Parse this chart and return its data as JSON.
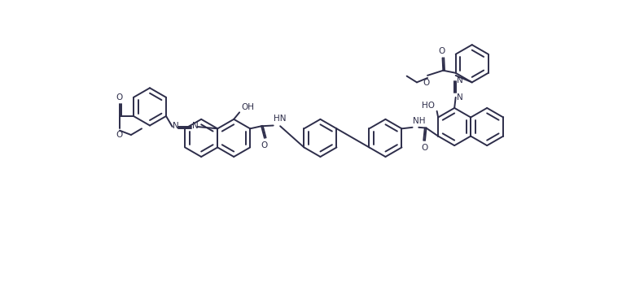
{
  "bg_color": "#ffffff",
  "line_color": "#2d2d4a",
  "lw": 1.4,
  "lw_double": 1.4,
  "do": 0.022,
  "font_size": 7.5,
  "fig_w": 7.91,
  "fig_h": 3.57,
  "xlim": [
    0,
    7.91
  ],
  "ylim": [
    0,
    3.57
  ]
}
